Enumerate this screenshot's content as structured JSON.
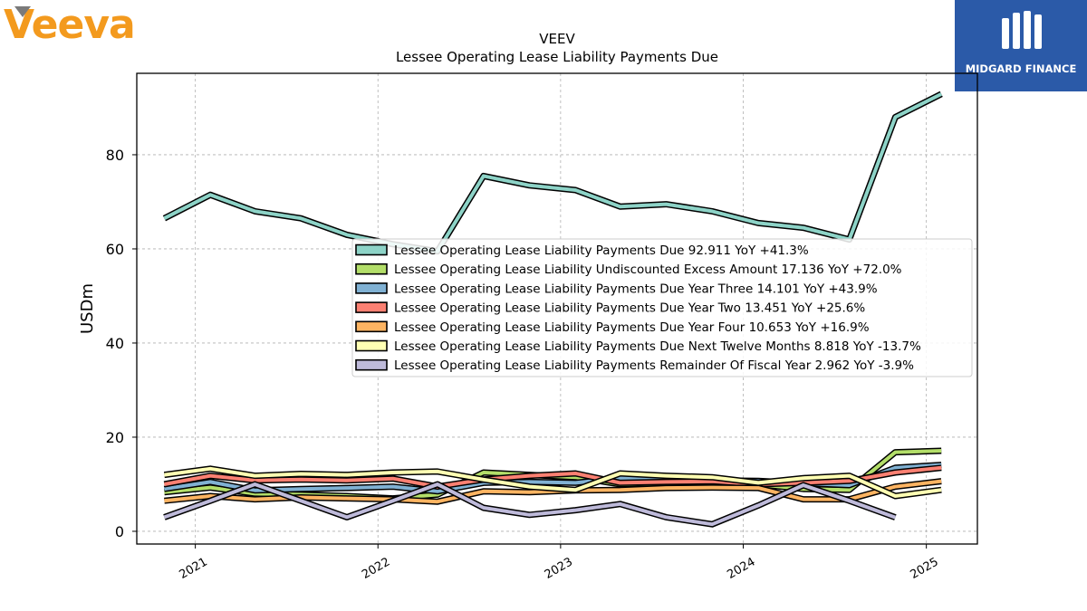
{
  "brand": {
    "left_logo_text": "Veeva",
    "right_logo_text": "MIDGARD FINANCE",
    "left_color": "#f39a1e",
    "right_bg": "#2b5aa8"
  },
  "chart_data": {
    "type": "line",
    "title": "VEEV",
    "subtitle": "Lessee Operating Lease Liability Payments Due",
    "xlabel": "",
    "ylabel": "USDm",
    "xlim": [
      "2020-09-06",
      "2025-04-13"
    ],
    "ylim": [
      -2.7,
      97.3
    ],
    "y_ticks": [
      0,
      20,
      40,
      60,
      80
    ],
    "x_ticks": [
      {
        "date": "2021-01-01",
        "label": "2021"
      },
      {
        "date": "2022-01-01",
        "label": "2022"
      },
      {
        "date": "2023-01-01",
        "label": "2023"
      },
      {
        "date": "2024-01-01",
        "label": "2024"
      },
      {
        "date": "2025-01-01",
        "label": "2025"
      }
    ],
    "grid": true,
    "legend_position": "center-right",
    "series": [
      {
        "name": "Lessee Operating Lease Liability Payments Due",
        "legend": "Lessee Operating Lease Liability Payments Due  92.911 YoY +41.3%",
        "color": "#8dd3c7",
        "points": [
          [
            "2020-10-31",
            66.5
          ],
          [
            "2021-01-31",
            71.5
          ],
          [
            "2021-04-30",
            68.0
          ],
          [
            "2021-07-31",
            66.5
          ],
          [
            "2021-10-31",
            63.0
          ],
          [
            "2022-01-31",
            61.0
          ],
          [
            "2022-04-30",
            59.5
          ],
          [
            "2022-07-31",
            75.5
          ],
          [
            "2022-10-31",
            73.5
          ],
          [
            "2023-01-31",
            72.5
          ],
          [
            "2023-04-30",
            69.0
          ],
          [
            "2023-07-31",
            69.5
          ],
          [
            "2023-10-31",
            68.0
          ],
          [
            "2024-01-31",
            65.5
          ],
          [
            "2024-04-30",
            64.5
          ],
          [
            "2024-07-31",
            62.0
          ],
          [
            "2024-10-31",
            88.0
          ],
          [
            "2025-01-31",
            92.9
          ]
        ]
      },
      {
        "name": "Lessee Operating Lease Liability Undiscounted Excess Amount",
        "legend": "Lessee Operating Lease Liability Undiscounted Excess Amount  17.136 YoY +72.0%",
        "color": "#b3de69",
        "points": [
          [
            "2020-10-31",
            8.3
          ],
          [
            "2021-01-31",
            9.3
          ],
          [
            "2021-04-30",
            8.0
          ],
          [
            "2021-07-31",
            7.8
          ],
          [
            "2021-10-31",
            7.5
          ],
          [
            "2022-01-31",
            7.0
          ],
          [
            "2022-04-30",
            7.8
          ],
          [
            "2022-07-31",
            12.5
          ],
          [
            "2022-10-31",
            12.0
          ],
          [
            "2023-01-31",
            11.5
          ],
          [
            "2023-04-30",
            10.0
          ],
          [
            "2023-07-31",
            10.2
          ],
          [
            "2023-10-31",
            10.2
          ],
          [
            "2024-01-31",
            10.0
          ],
          [
            "2024-04-30",
            9.0
          ],
          [
            "2024-07-31",
            8.8
          ],
          [
            "2024-10-31",
            16.8
          ],
          [
            "2025-01-31",
            17.1
          ]
        ]
      },
      {
        "name": "Lessee Operating Lease Liability Payments Due Year Three",
        "legend": "Lessee Operating Lease Liability Payments Due Year Three  14.101 YoY +43.9%",
        "color": "#80b1d3",
        "points": [
          [
            "2020-10-31",
            9.0
          ],
          [
            "2021-01-31",
            10.5
          ],
          [
            "2021-04-30",
            8.7
          ],
          [
            "2021-07-31",
            9.0
          ],
          [
            "2021-10-31",
            9.2
          ],
          [
            "2022-01-31",
            9.5
          ],
          [
            "2022-04-30",
            8.5
          ],
          [
            "2022-07-31",
            10.3
          ],
          [
            "2022-10-31",
            10.5
          ],
          [
            "2023-01-31",
            10.3
          ],
          [
            "2023-04-30",
            11.3
          ],
          [
            "2023-07-31",
            11.0
          ],
          [
            "2023-10-31",
            10.8
          ],
          [
            "2024-01-31",
            10.7
          ],
          [
            "2024-04-30",
            10.2
          ],
          [
            "2024-07-31",
            9.8
          ],
          [
            "2024-10-31",
            13.5
          ],
          [
            "2025-01-31",
            14.1
          ]
        ]
      },
      {
        "name": "Lessee Operating Lease Liability Payments Due Year Two",
        "legend": "Lessee Operating Lease Liability Payments Due Year Two  13.451 YoY +25.6%",
        "color": "#fb8072",
        "points": [
          [
            "2020-10-31",
            10.0
          ],
          [
            "2021-01-31",
            11.8
          ],
          [
            "2021-04-30",
            10.8
          ],
          [
            "2021-07-31",
            11.0
          ],
          [
            "2021-10-31",
            10.8
          ],
          [
            "2022-01-31",
            11.2
          ],
          [
            "2022-04-30",
            9.5
          ],
          [
            "2022-07-31",
            11.0
          ],
          [
            "2022-10-31",
            11.8
          ],
          [
            "2023-01-31",
            12.3
          ],
          [
            "2023-04-30",
            10.3
          ],
          [
            "2023-07-31",
            10.5
          ],
          [
            "2023-10-31",
            10.6
          ],
          [
            "2024-01-31",
            10.0
          ],
          [
            "2024-04-30",
            10.3
          ],
          [
            "2024-07-31",
            10.7
          ],
          [
            "2024-10-31",
            12.5
          ],
          [
            "2025-01-31",
            13.5
          ]
        ]
      },
      {
        "name": "Lessee Operating Lease Liability Payments Due Year Four",
        "legend": "Lessee Operating Lease Liability Payments Due Year Four  10.653 YoY +16.9%",
        "color": "#fdb462",
        "points": [
          [
            "2020-10-31",
            6.5
          ],
          [
            "2021-01-31",
            7.5
          ],
          [
            "2021-04-30",
            6.8
          ],
          [
            "2021-07-31",
            7.2
          ],
          [
            "2021-10-31",
            7.0
          ],
          [
            "2022-01-31",
            6.8
          ],
          [
            "2022-04-30",
            6.3
          ],
          [
            "2022-07-31",
            8.5
          ],
          [
            "2022-10-31",
            8.3
          ],
          [
            "2023-01-31",
            8.7
          ],
          [
            "2023-04-30",
            8.8
          ],
          [
            "2023-07-31",
            9.2
          ],
          [
            "2023-10-31",
            9.3
          ],
          [
            "2024-01-31",
            9.2
          ],
          [
            "2024-04-30",
            6.8
          ],
          [
            "2024-07-31",
            6.8
          ],
          [
            "2024-10-31",
            9.5
          ],
          [
            "2025-01-31",
            10.65
          ]
        ]
      },
      {
        "name": "Lessee Operating Lease Liability Payments Due Next Twelve Months",
        "legend": "Lessee Operating Lease Liability Payments Due Next Twelve Months  8.818 YoY -13.7%",
        "color": "#ffffb3",
        "points": [
          [
            "2020-10-31",
            12.0
          ],
          [
            "2021-01-31",
            13.3
          ],
          [
            "2021-04-30",
            11.8
          ],
          [
            "2021-07-31",
            12.2
          ],
          [
            "2021-10-31",
            12.0
          ],
          [
            "2022-01-31",
            12.5
          ],
          [
            "2022-04-30",
            12.7
          ],
          [
            "2022-07-31",
            11.0
          ],
          [
            "2022-10-31",
            9.5
          ],
          [
            "2023-01-31",
            8.8
          ],
          [
            "2023-04-30",
            12.3
          ],
          [
            "2023-07-31",
            11.8
          ],
          [
            "2023-10-31",
            11.5
          ],
          [
            "2024-01-31",
            10.3
          ],
          [
            "2024-04-30",
            11.3
          ],
          [
            "2024-07-31",
            11.8
          ],
          [
            "2024-10-31",
            7.5
          ],
          [
            "2025-01-31",
            8.8
          ]
        ]
      },
      {
        "name": "Lessee Operating Lease Liability Payments Remainder Of Fiscal Year",
        "legend": "Lessee Operating Lease Liability Payments Remainder Of Fiscal Year  2.962 YoY -3.9%",
        "color": "#bebada",
        "points": [
          [
            "2020-10-31",
            3.0
          ],
          [
            "2021-01-31",
            6.5
          ],
          [
            "2021-04-30",
            10.0
          ],
          [
            "2021-07-31",
            6.5
          ],
          [
            "2021-10-31",
            3.0
          ],
          [
            "2022-01-31",
            6.5
          ],
          [
            "2022-04-30",
            10.0
          ],
          [
            "2022-07-31",
            5.0
          ],
          [
            "2022-10-31",
            3.5
          ],
          [
            "2023-01-31",
            4.5
          ],
          [
            "2023-04-30",
            5.8
          ],
          [
            "2023-07-31",
            3.0
          ],
          [
            "2023-10-31",
            1.5
          ],
          [
            "2024-01-31",
            5.5
          ],
          [
            "2024-04-30",
            9.8
          ],
          [
            "2024-07-31",
            6.5
          ],
          [
            "2024-10-31",
            2.96
          ]
        ]
      }
    ]
  }
}
